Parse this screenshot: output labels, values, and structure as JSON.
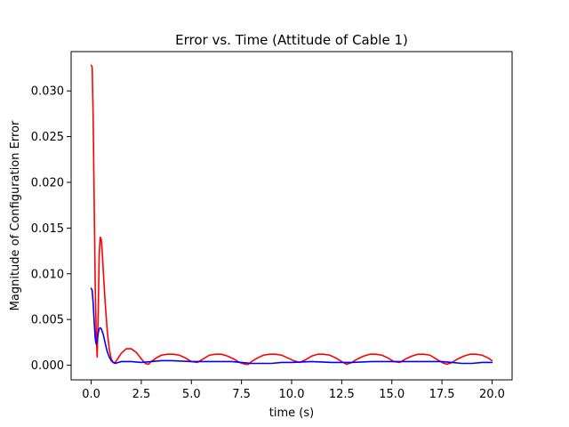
{
  "chart_data": {
    "type": "line",
    "title": "Error vs. Time (Attitude of Cable 1)",
    "xlabel": "time (s)",
    "ylabel": "Magnitude of Configuration Error",
    "xlim": [
      -1.0,
      21.0
    ],
    "ylim": [
      -0.0016,
      0.0343
    ],
    "xticks": [
      0.0,
      2.5,
      5.0,
      7.5,
      10.0,
      12.5,
      15.0,
      17.5,
      20.0
    ],
    "xtick_labels": [
      "0.0",
      "2.5",
      "5.0",
      "7.5",
      "10.0",
      "12.5",
      "15.0",
      "17.5",
      "20.0"
    ],
    "yticks": [
      0.0,
      0.005,
      0.01,
      0.015,
      0.02,
      0.025,
      0.03
    ],
    "ytick_labels": [
      "0.000",
      "0.005",
      "0.010",
      "0.015",
      "0.020",
      "0.025",
      "0.030"
    ],
    "grid": false,
    "legend": "none",
    "series": [
      {
        "color": "#ff0000",
        "x": [
          0.0,
          0.05,
          0.1,
          0.15,
          0.2,
          0.25,
          0.3,
          0.35,
          0.4,
          0.45,
          0.5,
          0.55,
          0.6,
          0.7,
          0.8,
          0.9,
          1.0,
          1.1,
          1.2,
          1.35,
          1.5,
          1.75,
          2.0,
          2.25,
          2.5,
          2.7,
          2.85,
          3.0,
          3.25,
          3.5,
          3.8,
          4.1,
          4.4,
          4.7,
          5.0,
          5.3,
          5.6,
          5.9,
          6.2,
          6.5,
          6.8,
          7.1,
          7.4,
          7.7,
          7.85,
          8.0,
          8.3,
          8.6,
          8.9,
          9.2,
          9.5,
          9.8,
          10.1,
          10.4,
          10.7,
          11.0,
          11.3,
          11.6,
          11.9,
          12.2,
          12.5,
          12.75,
          13.0,
          13.3,
          13.6,
          13.9,
          14.2,
          14.5,
          14.8,
          15.1,
          15.4,
          15.7,
          16.0,
          16.3,
          16.6,
          16.9,
          17.2,
          17.5,
          17.75,
          18.0,
          18.3,
          18.6,
          18.9,
          19.2,
          19.5,
          19.8,
          20.0
        ],
        "y": [
          0.0328,
          0.0326,
          0.027,
          0.018,
          0.009,
          0.0035,
          0.0009,
          0.0055,
          0.012,
          0.014,
          0.0138,
          0.0125,
          0.0105,
          0.0068,
          0.0038,
          0.0018,
          0.0007,
          0.0003,
          0.0003,
          0.0008,
          0.0013,
          0.0018,
          0.0018,
          0.0014,
          0.0007,
          0.0002,
          0.0001,
          0.0004,
          0.0008,
          0.0011,
          0.0012,
          0.0012,
          0.0011,
          0.0008,
          0.0004,
          0.0003,
          0.0007,
          0.0011,
          0.0012,
          0.0012,
          0.001,
          0.0007,
          0.0003,
          0.0001,
          0.0001,
          0.0004,
          0.0008,
          0.0011,
          0.0012,
          0.0012,
          0.0011,
          0.0008,
          0.0005,
          0.0003,
          0.0006,
          0.001,
          0.0012,
          0.0012,
          0.0011,
          0.0008,
          0.0004,
          0.0001,
          0.0003,
          0.0007,
          0.001,
          0.0012,
          0.0012,
          0.0011,
          0.0008,
          0.0004,
          0.0003,
          0.0007,
          0.001,
          0.0012,
          0.0012,
          0.0011,
          0.0007,
          0.0003,
          0.0001,
          0.0003,
          0.0007,
          0.001,
          0.0012,
          0.0012,
          0.0011,
          0.0008,
          0.0005
        ]
      },
      {
        "color": "#0000ff",
        "x": [
          0.0,
          0.05,
          0.1,
          0.15,
          0.2,
          0.25,
          0.3,
          0.35,
          0.4,
          0.45,
          0.5,
          0.6,
          0.7,
          0.8,
          0.9,
          1.0,
          1.1,
          1.2,
          1.35,
          1.5,
          1.75,
          2.0,
          2.5,
          3.0,
          3.5,
          4.0,
          5.0,
          6.0,
          7.0,
          7.5,
          8.0,
          8.5,
          9.0,
          9.5,
          10.0,
          11.0,
          12.0,
          13.0,
          14.0,
          15.0,
          16.0,
          17.0,
          17.5,
          18.0,
          18.5,
          19.0,
          19.5,
          20.0
        ],
        "y": [
          0.0084,
          0.0082,
          0.0068,
          0.0048,
          0.003,
          0.0023,
          0.0027,
          0.0035,
          0.004,
          0.0041,
          0.004,
          0.0034,
          0.0024,
          0.0015,
          0.0009,
          0.0005,
          0.0003,
          0.0002,
          0.0003,
          0.0004,
          0.0004,
          0.0004,
          0.0003,
          0.0004,
          0.0005,
          0.0005,
          0.0004,
          0.0004,
          0.0004,
          0.0003,
          0.0002,
          0.0002,
          0.0002,
          0.0003,
          0.0003,
          0.0004,
          0.0003,
          0.0003,
          0.0004,
          0.0004,
          0.0004,
          0.0004,
          0.0004,
          0.0003,
          0.0002,
          0.0002,
          0.0003,
          0.0003
        ]
      }
    ]
  }
}
